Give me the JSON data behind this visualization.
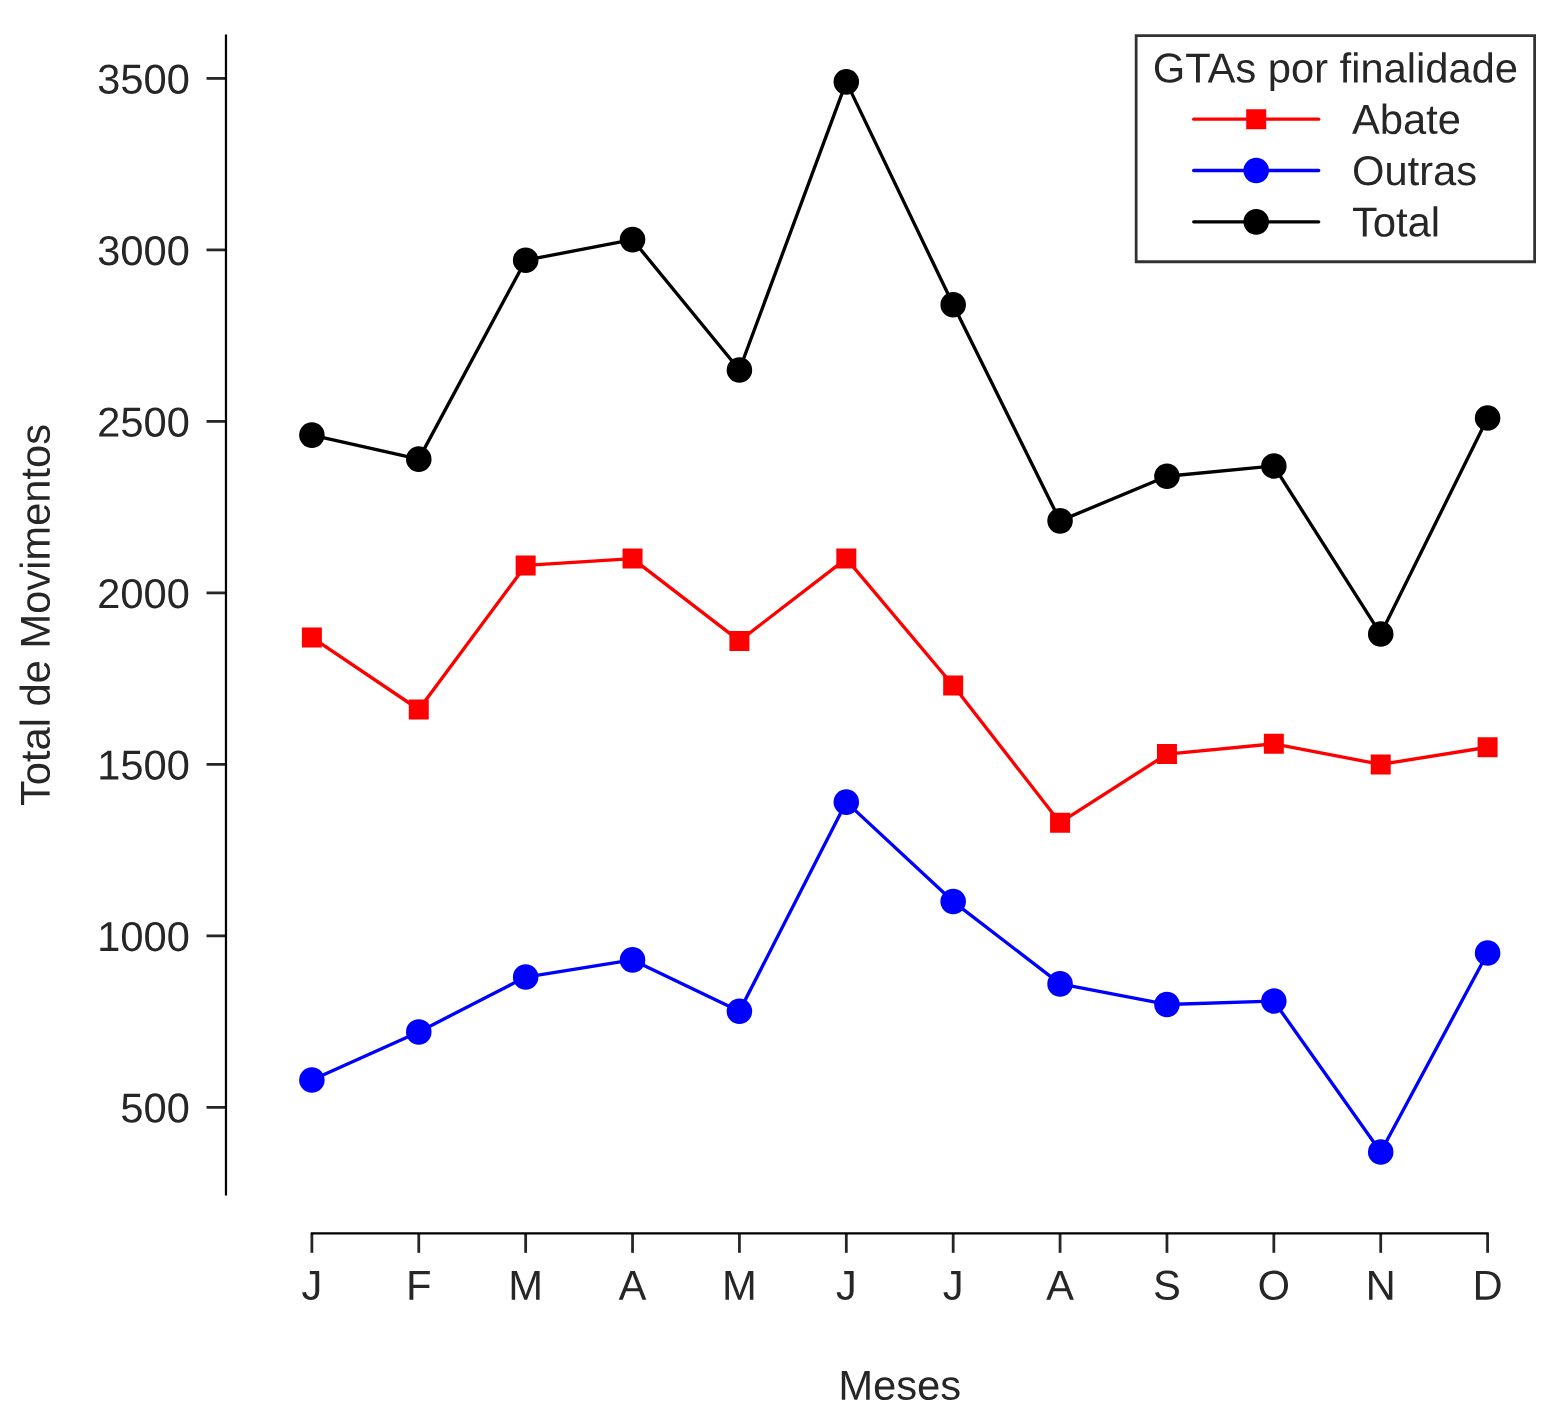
{
  "chart_data": {
    "type": "line",
    "xlabel": "Meses",
    "ylabel": "Total de Movimentos",
    "legend_title": "GTAs por finalidade",
    "categories": [
      "J",
      "F",
      "M",
      "A",
      "M",
      "J",
      "J",
      "A",
      "S",
      "O",
      "N",
      "D"
    ],
    "series": [
      {
        "name": "Abate",
        "color": "#ff0000",
        "marker": "square",
        "values": [
          1870,
          1660,
          2080,
          2100,
          1860,
          2100,
          1730,
          1330,
          1530,
          1560,
          1500,
          1550
        ]
      },
      {
        "name": "Outras",
        "color": "#0000ff",
        "marker": "circle",
        "values": [
          580,
          720,
          880,
          930,
          780,
          1390,
          1100,
          860,
          800,
          810,
          370,
          950
        ]
      },
      {
        "name": "Total",
        "color": "#000000",
        "marker": "circle",
        "values": [
          2460,
          2390,
          2970,
          3030,
          2650,
          3490,
          2840,
          2210,
          2340,
          2370,
          1880,
          2510
        ]
      }
    ],
    "ylim": [
      246,
      3625
    ],
    "yticks": [
      500,
      1000,
      1500,
      2000,
      2500,
      3000,
      3500
    ],
    "grid": false,
    "legend": "top right",
    "line_style": "solid"
  }
}
